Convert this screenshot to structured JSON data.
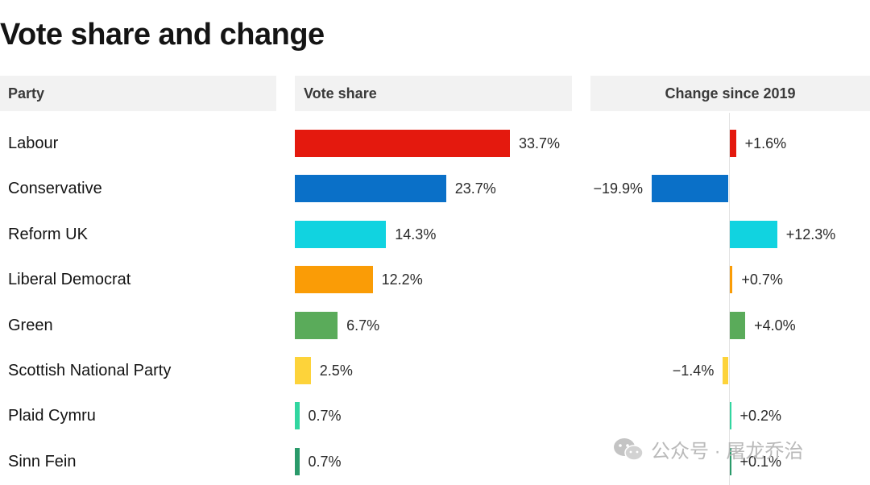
{
  "title": "Vote share and change",
  "headers": {
    "party": "Party",
    "vote_share": "Vote share",
    "change": "Change since 2019"
  },
  "chart_data": {
    "type": "bar",
    "title": "Vote share and change",
    "categories": [
      "Labour",
      "Conservative",
      "Reform UK",
      "Liberal Democrat",
      "Green",
      "Scottish National Party",
      "Plaid Cymru",
      "Sinn Fein"
    ],
    "series": [
      {
        "name": "Vote share",
        "values": [
          33.7,
          23.7,
          14.3,
          12.2,
          6.7,
          2.5,
          0.7,
          0.7
        ],
        "labels": [
          "33.7%",
          "23.7%",
          "14.3%",
          "12.2%",
          "6.7%",
          "2.5%",
          "0.7%",
          "0.7%"
        ]
      },
      {
        "name": "Change since 2019",
        "values": [
          1.6,
          -19.9,
          12.3,
          0.7,
          4.0,
          -1.4,
          0.2,
          0.1
        ],
        "labels": [
          "+1.6%",
          "−19.9%",
          "+12.3%",
          "+0.7%",
          "+4.0%",
          "−1.4%",
          "+0.2%",
          "+0.1%"
        ]
      }
    ],
    "colors": [
      "#e4190e",
      "#0a70c8",
      "#11d3e0",
      "#fa9c06",
      "#5aab5a",
      "#fdd33a",
      "#31d6a0",
      "#2a9a6a"
    ],
    "vote_scale_max": 33.7,
    "change_range": [
      -20,
      12.5
    ]
  },
  "watermark": {
    "text": "公众号 · 屠龙乔治",
    "icon": "wechat-icon"
  }
}
